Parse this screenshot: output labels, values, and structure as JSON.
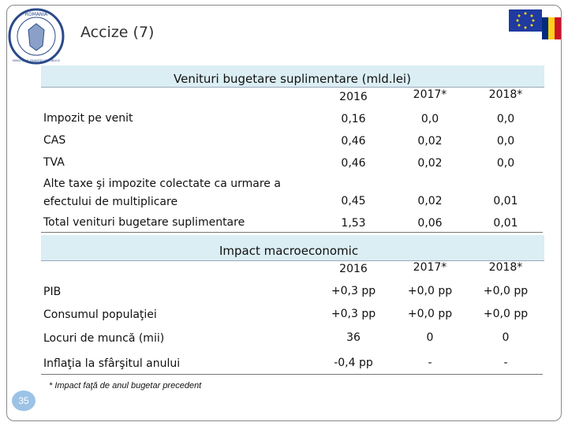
{
  "header": {
    "title": "Accize (7)",
    "logo_top": "ROMANIA",
    "logo_bottom": "MINISTERUL FINANTELOR PUBLICE"
  },
  "table1": {
    "title": "Venituri bugetare suplimentare (mld.lei)",
    "columns": [
      "2016",
      "2017*",
      "2018*"
    ],
    "rows": [
      {
        "label": "Impozit pe venit",
        "values": [
          "0,16",
          "0,0",
          "0,0"
        ]
      },
      {
        "label": "CAS",
        "values": [
          "0,46",
          "0,02",
          "0,0"
        ]
      },
      {
        "label": "TVA",
        "values": [
          "0,46",
          "0,02",
          "0,0"
        ]
      },
      {
        "label": "Alte taxe şi impozite colectate ca urmare a efectului de multiplicare",
        "values": [
          "0,45",
          "0,02",
          "0,01"
        ]
      },
      {
        "label": "Total venituri bugetare suplimentare",
        "values": [
          "1,53",
          "0,06",
          "0,01"
        ]
      }
    ]
  },
  "table2": {
    "title": "Impact macroeconomic",
    "columns": [
      "2016",
      "2017*",
      "2018*"
    ],
    "rows": [
      {
        "label": "PIB",
        "values": [
          "+0,3 pp",
          "+0,0 pp",
          "+0,0 pp"
        ]
      },
      {
        "label": "Consumul populaţiei",
        "values": [
          "+0,3 pp",
          "+0,0 pp",
          "+0,0 pp"
        ]
      },
      {
        "label": "Locuri de muncă (mii)",
        "values": [
          "36",
          "0",
          "0"
        ]
      },
      {
        "label": "Inflaţia la sfârşitul anului",
        "values": [
          "-0,4 pp",
          "-",
          "-"
        ]
      }
    ]
  },
  "footnote": "* Impact faţă de anul bugetar precedent",
  "page_number": "35"
}
